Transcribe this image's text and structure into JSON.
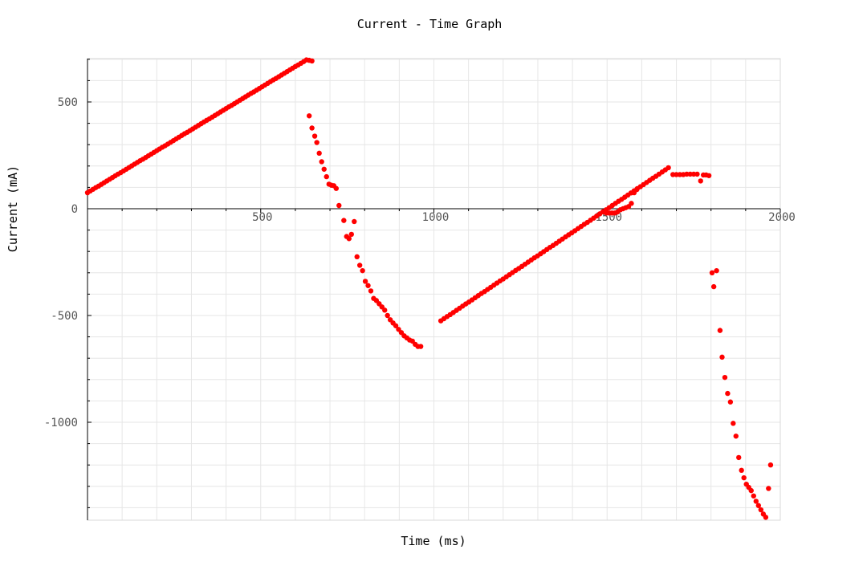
{
  "chart_data": {
    "type": "scatter",
    "title": "Current - Time Graph",
    "xlabel": "Time (ms)",
    "ylabel": "Current (mA)",
    "xlim": [
      0,
      2000
    ],
    "ylim": [
      -1460,
      710
    ],
    "x_ticks": [
      500,
      1000,
      1500,
      2000
    ],
    "y_ticks": [
      500,
      0,
      -500,
      -1000
    ],
    "x_tick_labels": [
      "500",
      "1000",
      "1500",
      "2000"
    ],
    "y_tick_labels": [
      "500",
      "0",
      "-500",
      "-1000"
    ],
    "grid": true,
    "legend": "none",
    "marker_color": "#ff0000",
    "segments": [
      {
        "x0": 0,
        "x1": 635,
        "y0": 75,
        "y1": 700,
        "step": 8
      },
      {
        "x0": 1020,
        "x1": 1680,
        "y0": -525,
        "y1": 195,
        "step": 9
      }
    ],
    "points": [
      [
        640,
        695
      ],
      [
        648,
        692
      ],
      [
        640,
        435
      ],
      [
        648,
        378
      ],
      [
        656,
        340
      ],
      [
        662,
        310
      ],
      [
        669,
        260
      ],
      [
        676,
        220
      ],
      [
        683,
        185
      ],
      [
        690,
        150
      ],
      [
        697,
        115
      ],
      [
        704,
        110
      ],
      [
        711,
        108
      ],
      [
        718,
        95
      ],
      [
        726,
        15
      ],
      [
        740,
        -55
      ],
      [
        748,
        -130
      ],
      [
        755,
        -140
      ],
      [
        762,
        -120
      ],
      [
        770,
        -60
      ],
      [
        778,
        -225
      ],
      [
        786,
        -265
      ],
      [
        794,
        -290
      ],
      [
        802,
        -340
      ],
      [
        810,
        -360
      ],
      [
        818,
        -385
      ],
      [
        826,
        -420
      ],
      [
        834,
        -430
      ],
      [
        842,
        -445
      ],
      [
        850,
        -460
      ],
      [
        858,
        -475
      ],
      [
        866,
        -500
      ],
      [
        874,
        -520
      ],
      [
        882,
        -535
      ],
      [
        890,
        -548
      ],
      [
        898,
        -565
      ],
      [
        906,
        -580
      ],
      [
        914,
        -595
      ],
      [
        922,
        -605
      ],
      [
        930,
        -615
      ],
      [
        938,
        -620
      ],
      [
        946,
        -635
      ],
      [
        954,
        -645
      ],
      [
        962,
        -645
      ],
      [
        1490,
        -15
      ],
      [
        1498,
        -20
      ],
      [
        1506,
        -20
      ],
      [
        1514,
        -20
      ],
      [
        1522,
        -20
      ],
      [
        1530,
        -15
      ],
      [
        1538,
        -5
      ],
      [
        1546,
        0
      ],
      [
        1554,
        5
      ],
      [
        1562,
        10
      ],
      [
        1570,
        25
      ],
      [
        1578,
        75
      ],
      [
        1586,
        90
      ],
      [
        1690,
        160
      ],
      [
        1700,
        160
      ],
      [
        1710,
        160
      ],
      [
        1720,
        160
      ],
      [
        1730,
        162
      ],
      [
        1740,
        162
      ],
      [
        1750,
        162
      ],
      [
        1760,
        162
      ],
      [
        1770,
        130
      ],
      [
        1778,
        158
      ],
      [
        1786,
        158
      ],
      [
        1794,
        155
      ],
      [
        1803,
        -300
      ],
      [
        1808,
        -365
      ],
      [
        1816,
        -290
      ],
      [
        1826,
        -570
      ],
      [
        1832,
        -695
      ],
      [
        1840,
        -790
      ],
      [
        1848,
        -865
      ],
      [
        1856,
        -905
      ],
      [
        1864,
        -1005
      ],
      [
        1872,
        -1065
      ],
      [
        1880,
        -1165
      ],
      [
        1888,
        -1225
      ],
      [
        1895,
        -1260
      ],
      [
        1902,
        -1290
      ],
      [
        1909,
        -1305
      ],
      [
        1916,
        -1320
      ],
      [
        1923,
        -1345
      ],
      [
        1930,
        -1370
      ],
      [
        1937,
        -1390
      ],
      [
        1944,
        -1410
      ],
      [
        1951,
        -1430
      ],
      [
        1958,
        -1445
      ],
      [
        1966,
        -1310
      ],
      [
        1972,
        -1200
      ]
    ]
  }
}
